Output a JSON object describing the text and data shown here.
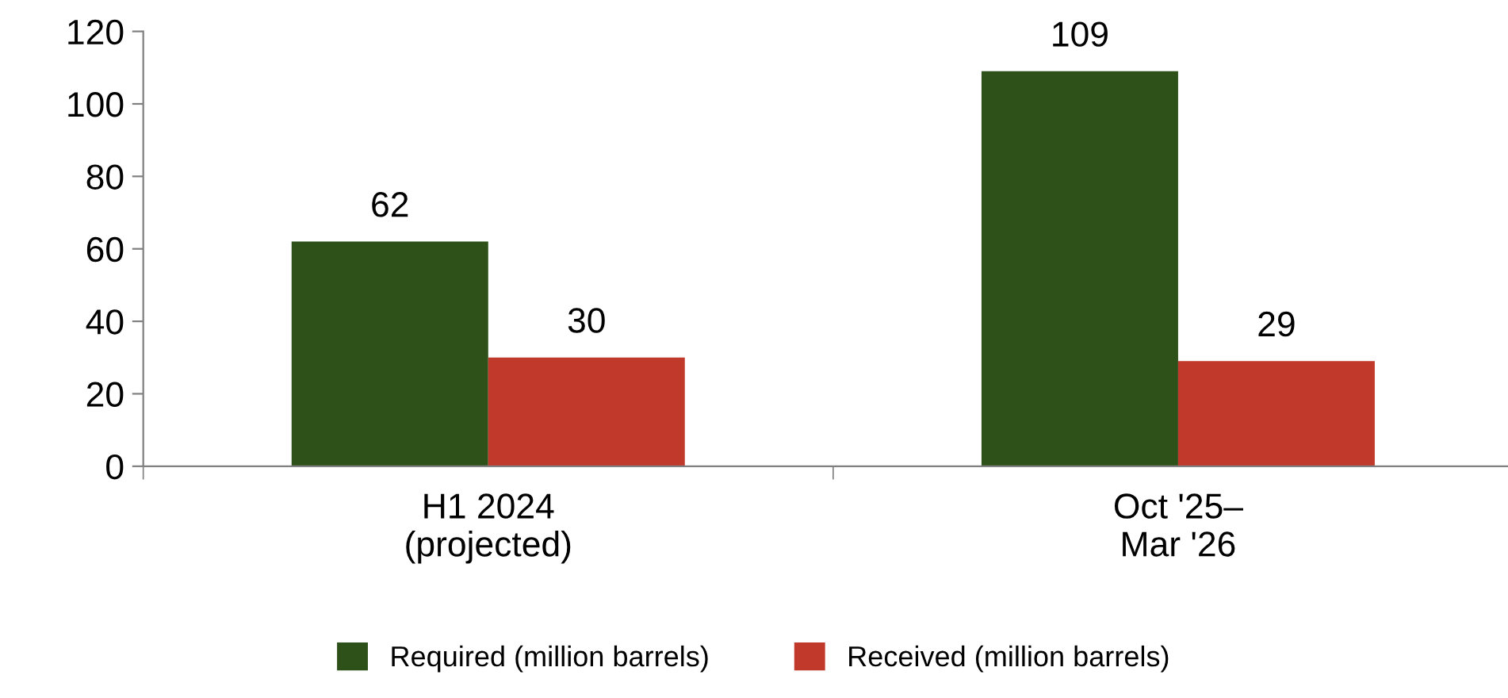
{
  "chart_data": {
    "type": "bar",
    "categories": [
      "H1 2024\n(projected)",
      "Oct '25–\nMar '26"
    ],
    "series": [
      {
        "name": "Required (million barrels)",
        "color": "#2d5119",
        "values": [
          62,
          109
        ]
      },
      {
        "name": "Received (million barrels)",
        "color": "#c0392b",
        "values": [
          30,
          29
        ]
      }
    ],
    "ylim": [
      0,
      120
    ],
    "yticks": [
      0,
      20,
      40,
      60,
      80,
      100,
      120
    ],
    "data_labels": true,
    "grid": false,
    "legend": "bottom"
  }
}
